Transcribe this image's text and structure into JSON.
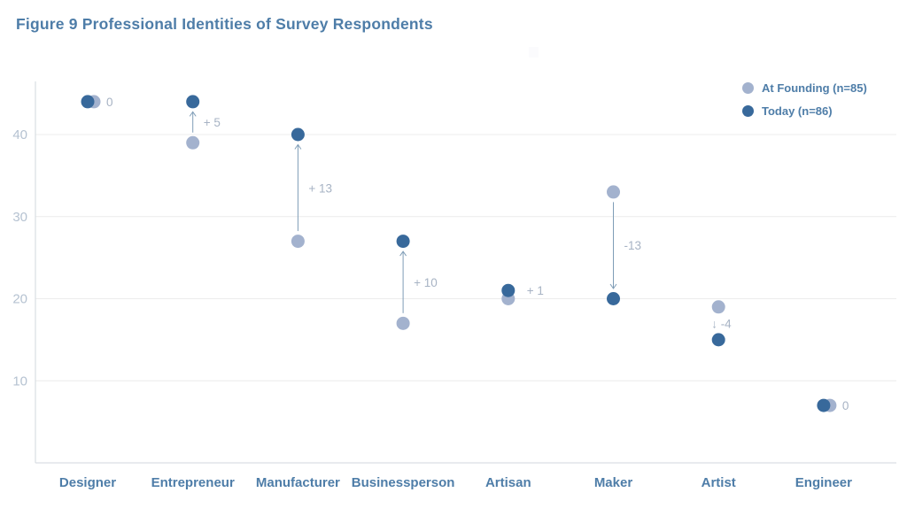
{
  "title": "Figure 9  Professional Identities of Survey Respondents",
  "legend": {
    "position": "top-right",
    "items": [
      {
        "label": "At Founding (n=85)",
        "color": "#a3b2ce"
      },
      {
        "label": "Today (n=86)",
        "color": "#38699b"
      }
    ]
  },
  "chart_data": {
    "type": "scatter",
    "subtype": "dumbbell-dot-plot",
    "title": "Figure 9  Professional Identities of Survey Respondents",
    "categories": [
      "Designer",
      "Entrepreneur",
      "Manufacturer",
      "Businessperson",
      "Artisan",
      "Maker",
      "Artist",
      "Engineer"
    ],
    "series": [
      {
        "name": "At Founding (n=85)",
        "color": "#a3b2ce",
        "values": [
          44,
          39,
          27,
          17,
          20,
          33,
          19,
          7
        ]
      },
      {
        "name": "Today (n=86)",
        "color": "#38699b",
        "values": [
          44,
          44,
          40,
          27,
          21,
          20,
          15,
          7
        ]
      }
    ],
    "delta_labels": [
      "0",
      "+ 5",
      "+ 13",
      "+ 10",
      "+ 1",
      "-13",
      "-4",
      "0"
    ],
    "delta_arrows": [
      "none",
      "up",
      "up",
      "up",
      "none",
      "down",
      "glyph-down",
      "none"
    ],
    "down_arrow_glyph": "↓",
    "y_ticks": [
      10,
      20,
      30,
      40
    ],
    "ylim": [
      0,
      46.3
    ],
    "xlabel": "",
    "ylabel": "",
    "grid": "horizontal",
    "legend_position": "top-right"
  },
  "colors": {
    "accent_text": "#4e7da8",
    "annotation_text": "#a7b3c4",
    "tick_text": "#b5c2d1",
    "gridline": "#ececec",
    "axis_line": "#d9dee3",
    "arrow": "#7f9db7",
    "background": "#ffffff"
  }
}
